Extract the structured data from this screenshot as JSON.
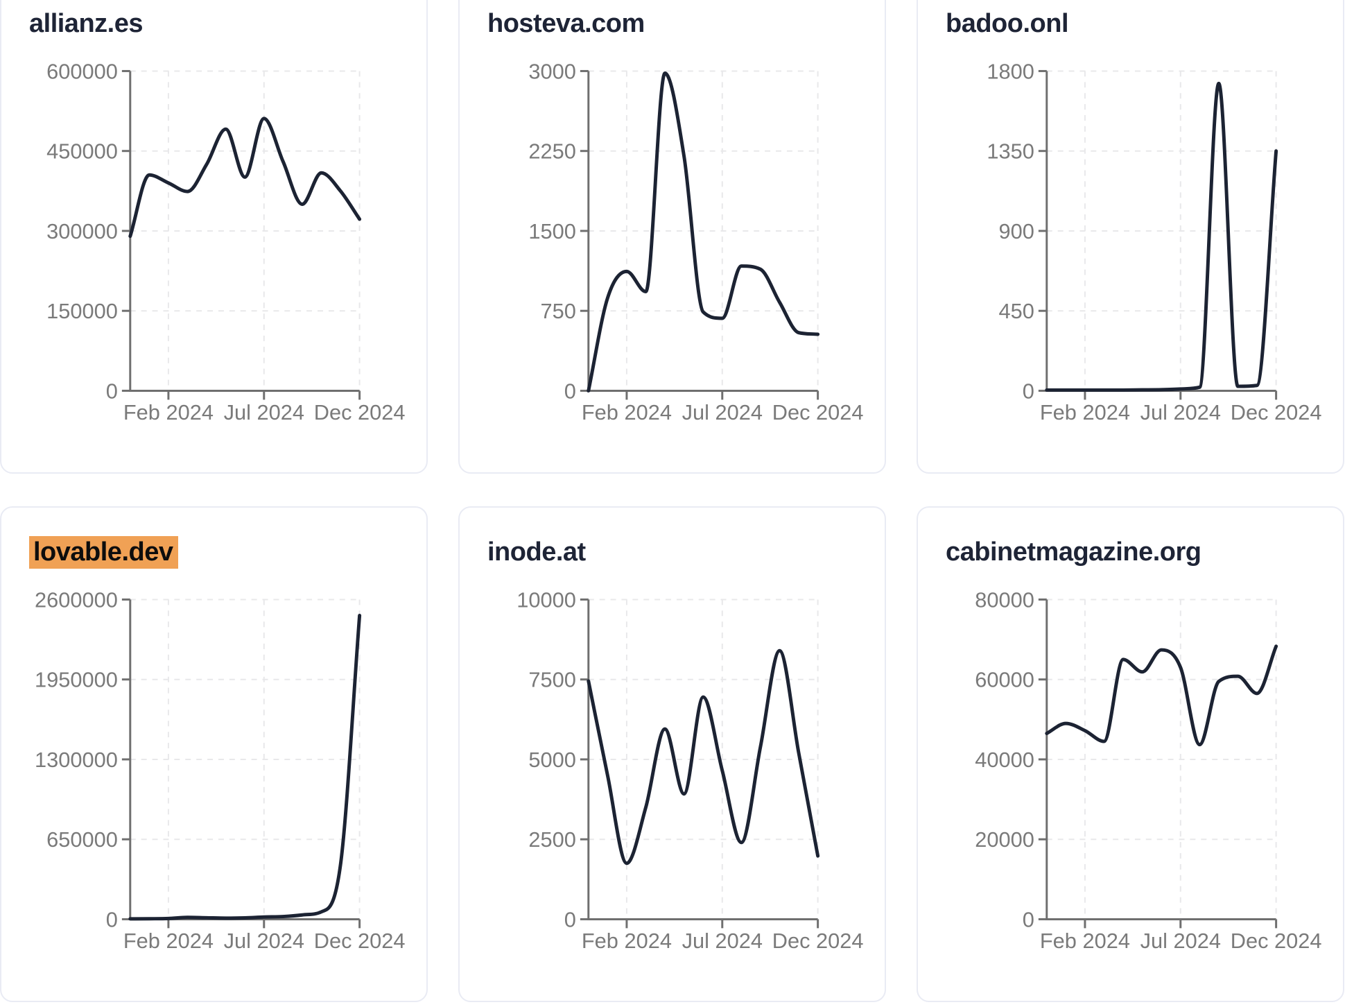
{
  "page": {
    "background": "#ffffff"
  },
  "style": {
    "card_border": "#e9ebf4",
    "card_background": "#ffffff",
    "title_color": "#1e2436",
    "line_color": "#1c2333",
    "tick_label_color": "#7a7a7a",
    "axis_color": "#6f6f6f",
    "grid_color": "#e8e8ea",
    "highlight_background": "#f0a155",
    "highlight_text": "#0d0d0d"
  },
  "chart_data": [
    {
      "type": "line",
      "title": "allianz.es",
      "highlighted": false,
      "x": [
        "Dec 2023",
        "Jan 2024",
        "Feb 2024",
        "Mar 2024",
        "Apr 2024",
        "May 2024",
        "Jun 2024",
        "Jul 2024",
        "Aug 2024",
        "Sep 2024",
        "Oct 2024",
        "Nov 2024",
        "Dec 2024"
      ],
      "values": [
        290000,
        405000,
        390000,
        374000,
        425000,
        491000,
        401000,
        511000,
        430000,
        350000,
        409000,
        375000,
        322000
      ],
      "yticks": [
        0,
        150000,
        300000,
        450000,
        600000
      ],
      "ylim": [
        0,
        600000
      ],
      "xticks": [
        "Feb 2024",
        "Jul 2024",
        "Dec 2024"
      ],
      "xtick_indices": [
        2,
        7,
        12
      ],
      "grid": true,
      "legend": "none"
    },
    {
      "type": "line",
      "title": "hosteva.com",
      "highlighted": false,
      "x": [
        "Dec 2023",
        "Jan 2024",
        "Feb 2024",
        "Mar 2024",
        "Apr 2024",
        "May 2024",
        "Jun 2024",
        "Jul 2024",
        "Aug 2024",
        "Sep 2024",
        "Oct 2024",
        "Nov 2024",
        "Dec 2024"
      ],
      "values": [
        0,
        870,
        1120,
        930,
        2980,
        2200,
        740,
        680,
        1170,
        1140,
        830,
        545,
        530
      ],
      "yticks": [
        0,
        750,
        1500,
        2250,
        3000
      ],
      "ylim": [
        0,
        3000
      ],
      "xticks": [
        "Feb 2024",
        "Jul 2024",
        "Dec 2024"
      ],
      "xtick_indices": [
        2,
        7,
        12
      ],
      "grid": true,
      "legend": "none"
    },
    {
      "type": "line",
      "title": "badoo.onl",
      "highlighted": false,
      "x": [
        "Dec 2023",
        "Jan 2024",
        "Feb 2024",
        "Mar 2024",
        "Apr 2024",
        "May 2024",
        "Jun 2024",
        "Jul 2024",
        "Aug 2024",
        "Sep 2024",
        "Oct 2024",
        "Nov 2024",
        "Dec 2024"
      ],
      "values": [
        4,
        4,
        4,
        4,
        4,
        5,
        6,
        10,
        20,
        1730,
        25,
        30,
        1350
      ],
      "yticks": [
        0,
        450,
        900,
        1350,
        1800
      ],
      "ylim": [
        0,
        1800
      ],
      "xticks": [
        "Feb 2024",
        "Jul 2024",
        "Dec 2024"
      ],
      "xtick_indices": [
        2,
        7,
        12
      ],
      "grid": true,
      "legend": "none"
    },
    {
      "type": "line",
      "title": "lovable.dev",
      "highlighted": true,
      "x": [
        "Dec 2023",
        "Jan 2024",
        "Feb 2024",
        "Mar 2024",
        "Apr 2024",
        "May 2024",
        "Jun 2024",
        "Jul 2024",
        "Aug 2024",
        "Sep 2024",
        "Oct 2024",
        "Nov 2024",
        "Dec 2024"
      ],
      "values": [
        3000,
        4000,
        6000,
        15000,
        12000,
        9000,
        11000,
        18000,
        22000,
        35000,
        60000,
        440000,
        2470000
      ],
      "yticks": [
        0,
        650000,
        1300000,
        1950000,
        2600000
      ],
      "ylim": [
        0,
        2600000
      ],
      "xticks": [
        "Feb 2024",
        "Jul 2024",
        "Dec 2024"
      ],
      "xtick_indices": [
        2,
        7,
        12
      ],
      "grid": true,
      "legend": "none"
    },
    {
      "type": "line",
      "title": "inode.at",
      "highlighted": false,
      "x": [
        "Dec 2023",
        "Jan 2024",
        "Feb 2024",
        "Mar 2024",
        "Apr 2024",
        "May 2024",
        "Jun 2024",
        "Jul 2024",
        "Aug 2024",
        "Sep 2024",
        "Oct 2024",
        "Nov 2024",
        "Dec 2024"
      ],
      "values": [
        7450,
        4500,
        1750,
        3500,
        5950,
        3920,
        6950,
        4650,
        2400,
        5400,
        8400,
        5200,
        1980
      ],
      "yticks": [
        0,
        2500,
        5000,
        7500,
        10000
      ],
      "ylim": [
        0,
        10000
      ],
      "xticks": [
        "Feb 2024",
        "Jul 2024",
        "Dec 2024"
      ],
      "xtick_indices": [
        2,
        7,
        12
      ],
      "grid": true,
      "legend": "none"
    },
    {
      "type": "line",
      "title": "cabinetmagazine.org",
      "highlighted": false,
      "x": [
        "Dec 2023",
        "Jan 2024",
        "Feb 2024",
        "Mar 2024",
        "Apr 2024",
        "May 2024",
        "Jun 2024",
        "Jul 2024",
        "Aug 2024",
        "Sep 2024",
        "Oct 2024",
        "Nov 2024",
        "Dec 2024"
      ],
      "values": [
        46500,
        49000,
        47200,
        44500,
        65000,
        61900,
        67400,
        63000,
        43700,
        59500,
        60800,
        56500,
        68300
      ],
      "yticks": [
        0,
        20000,
        40000,
        60000,
        80000
      ],
      "ylim": [
        0,
        80000
      ],
      "xticks": [
        "Feb 2024",
        "Jul 2024",
        "Dec 2024"
      ],
      "xtick_indices": [
        2,
        7,
        12
      ],
      "grid": true,
      "legend": "none"
    }
  ]
}
